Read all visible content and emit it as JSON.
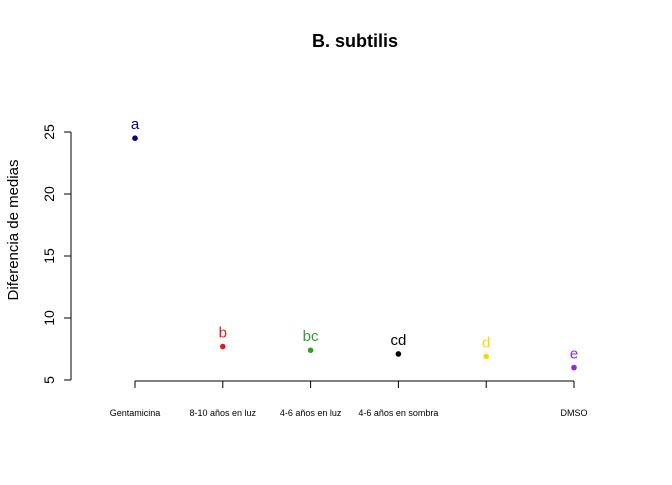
{
  "chart_data": {
    "type": "scatter",
    "title": "B. subtilis",
    "xlabel": "",
    "ylabel": "Diferencia de medias",
    "ylim": [
      5,
      25
    ],
    "yticks": [
      5,
      10,
      15,
      20,
      25
    ],
    "grid": false,
    "categories": [
      "Gentamicina",
      "8-10 años en luz",
      "4-6 años en luz",
      "4-6 años en sombra",
      "",
      "DMSO"
    ],
    "values": [
      24.5,
      7.7,
      7.4,
      7.1,
      6.9,
      6.0
    ],
    "letters": [
      "a",
      "b",
      "bc",
      "cd",
      "d",
      "e"
    ],
    "colors": [
      "#00008B",
      "#E31A1C",
      "#33A02C",
      "#000000",
      "#FFD700",
      "#8A2BE2"
    ]
  }
}
